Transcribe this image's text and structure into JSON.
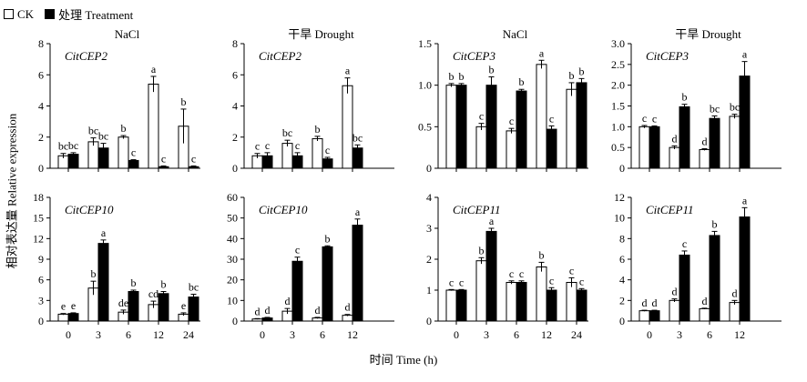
{
  "legend": {
    "ck": "CK",
    "treatment": "处理 Treatment"
  },
  "ylabel": "相对表达量 Relative expression",
  "xlabel": "时间 Time (h)",
  "chart_data": [
    {
      "type": "bar",
      "title": "NaCl",
      "gene": "CitCEP2",
      "categories": [
        "0",
        "3",
        "6",
        "12",
        "24"
      ],
      "ylim": [
        0,
        8
      ],
      "yticks": [
        0,
        2,
        4,
        6,
        8
      ],
      "series": [
        {
          "name": "CK",
          "values": [
            0.8,
            1.7,
            2.0,
            5.4,
            2.7
          ],
          "errors": [
            0.15,
            0.25,
            0.1,
            0.5,
            1.1
          ],
          "letters": [
            "bc",
            "bc",
            "b",
            "a",
            "b"
          ]
        },
        {
          "name": "处理 Treatment",
          "values": [
            0.9,
            1.3,
            0.5,
            0.1,
            0.1
          ],
          "errors": [
            0.1,
            0.3,
            0.05,
            0.05,
            0.05
          ],
          "letters": [
            "bc",
            "bc",
            "c",
            "c",
            "c"
          ]
        }
      ]
    },
    {
      "type": "bar",
      "title": "干旱 Drought",
      "gene": "CitCEP2",
      "categories": [
        "0",
        "3",
        "6",
        "12"
      ],
      "ylim": [
        0,
        8
      ],
      "yticks": [
        0,
        2,
        4,
        6,
        8
      ],
      "series": [
        {
          "name": "CK",
          "values": [
            0.8,
            1.6,
            1.9,
            5.3
          ],
          "errors": [
            0.15,
            0.2,
            0.15,
            0.5
          ],
          "letters": [
            "c",
            "bc",
            "b",
            "a"
          ]
        },
        {
          "name": "处理 Treatment",
          "values": [
            0.8,
            0.8,
            0.6,
            1.3
          ],
          "errors": [
            0.2,
            0.2,
            0.1,
            0.2
          ],
          "letters": [
            "c",
            "c",
            "c",
            "bc"
          ]
        }
      ]
    },
    {
      "type": "bar",
      "title": "NaCl",
      "gene": "CitCEP3",
      "categories": [
        "0",
        "3",
        "6",
        "12",
        "24"
      ],
      "ylim": [
        0,
        1.5
      ],
      "yticks": [
        0,
        0.5,
        1.0,
        1.5
      ],
      "series": [
        {
          "name": "CK",
          "values": [
            1.0,
            0.5,
            0.45,
            1.25,
            0.95
          ],
          "errors": [
            0.02,
            0.04,
            0.03,
            0.05,
            0.08
          ],
          "letters": [
            "b",
            "c",
            "c",
            "a",
            "b"
          ]
        },
        {
          "name": "处理 Treatment",
          "values": [
            1.0,
            1.0,
            0.93,
            0.47,
            1.03
          ],
          "errors": [
            0.02,
            0.1,
            0.02,
            0.04,
            0.05
          ],
          "letters": [
            "b",
            "b",
            "b",
            "c",
            "b"
          ]
        }
      ]
    },
    {
      "type": "bar",
      "title": "干旱 Drought",
      "gene": "CitCEP3",
      "categories": [
        "0",
        "3",
        "6",
        "12"
      ],
      "ylim": [
        0,
        3.0
      ],
      "yticks": [
        0,
        0.5,
        1.0,
        1.5,
        2.0,
        2.5,
        3.0
      ],
      "series": [
        {
          "name": "CK",
          "values": [
            1.0,
            0.5,
            0.45,
            1.25
          ],
          "errors": [
            0.03,
            0.04,
            0.02,
            0.05
          ],
          "letters": [
            "c",
            "d",
            "d",
            "bc"
          ]
        },
        {
          "name": "处理 Treatment",
          "values": [
            1.0,
            1.48,
            1.2,
            2.22
          ],
          "errors": [
            0.02,
            0.06,
            0.06,
            0.35
          ],
          "letters": [
            "c",
            "b",
            "bc",
            "a"
          ]
        }
      ]
    },
    {
      "type": "bar",
      "gene": "CitCEP10",
      "categories": [
        "0",
        "3",
        "6",
        "12",
        "24"
      ],
      "ylim": [
        0,
        18
      ],
      "yticks": [
        0,
        3,
        6,
        9,
        12,
        15,
        18
      ],
      "series": [
        {
          "name": "CK",
          "values": [
            1.0,
            4.8,
            1.3,
            2.4,
            1.0
          ],
          "errors": [
            0.1,
            1.0,
            0.3,
            0.5,
            0.2
          ],
          "letters": [
            "e",
            "b",
            "de",
            "cd",
            "e"
          ]
        },
        {
          "name": "处理 Treatment",
          "values": [
            1.1,
            11.3,
            4.3,
            4.0,
            3.5
          ],
          "errors": [
            0.1,
            0.5,
            0.2,
            0.3,
            0.4
          ],
          "letters": [
            "e",
            "a",
            "b",
            "b",
            "bc"
          ]
        }
      ]
    },
    {
      "type": "bar",
      "gene": "CitCEP10",
      "categories": [
        "0",
        "3",
        "6",
        "12"
      ],
      "ylim": [
        0,
        60
      ],
      "yticks": [
        0,
        10,
        20,
        30,
        40,
        50,
        60
      ],
      "series": [
        {
          "name": "CK",
          "values": [
            1.0,
            4.8,
            1.5,
            2.8
          ],
          "errors": [
            0.2,
            1.3,
            0.3,
            0.4
          ],
          "letters": [
            "d",
            "d",
            "d",
            "d"
          ]
        },
        {
          "name": "处理 Treatment",
          "values": [
            1.5,
            29.0,
            36.0,
            46.5
          ],
          "errors": [
            0.3,
            2.0,
            0.5,
            3.0
          ],
          "letters": [
            "d",
            "c",
            "b",
            "a"
          ]
        }
      ]
    },
    {
      "type": "bar",
      "gene": "CitCEP11",
      "categories": [
        "0",
        "3",
        "6",
        "12",
        "24"
      ],
      "ylim": [
        0,
        4
      ],
      "yticks": [
        0,
        1,
        2,
        3,
        4
      ],
      "series": [
        {
          "name": "CK",
          "values": [
            1.0,
            1.95,
            1.25,
            1.75,
            1.25
          ],
          "errors": [
            0.02,
            0.1,
            0.05,
            0.15,
            0.15
          ],
          "letters": [
            "c",
            "b",
            "c",
            "b",
            "c"
          ]
        },
        {
          "name": "处理 Treatment",
          "values": [
            1.0,
            2.9,
            1.25,
            1.0,
            1.0
          ],
          "errors": [
            0.02,
            0.1,
            0.05,
            0.08,
            0.05
          ],
          "letters": [
            "c",
            "a",
            "c",
            "c",
            "c"
          ]
        }
      ]
    },
    {
      "type": "bar",
      "gene": "CitCEP11",
      "categories": [
        "0",
        "3",
        "6",
        "12"
      ],
      "ylim": [
        0,
        12
      ],
      "yticks": [
        0,
        2,
        4,
        6,
        8,
        10,
        12
      ],
      "series": [
        {
          "name": "CK",
          "values": [
            1.0,
            2.0,
            1.2,
            1.8
          ],
          "errors": [
            0.05,
            0.15,
            0.05,
            0.2
          ],
          "letters": [
            "d",
            "d",
            "d",
            "d"
          ]
        },
        {
          "name": "处理 Treatment",
          "values": [
            1.0,
            6.4,
            8.3,
            10.1
          ],
          "errors": [
            0.05,
            0.4,
            0.4,
            0.9
          ],
          "letters": [
            "d",
            "c",
            "b",
            "a"
          ]
        }
      ]
    }
  ]
}
